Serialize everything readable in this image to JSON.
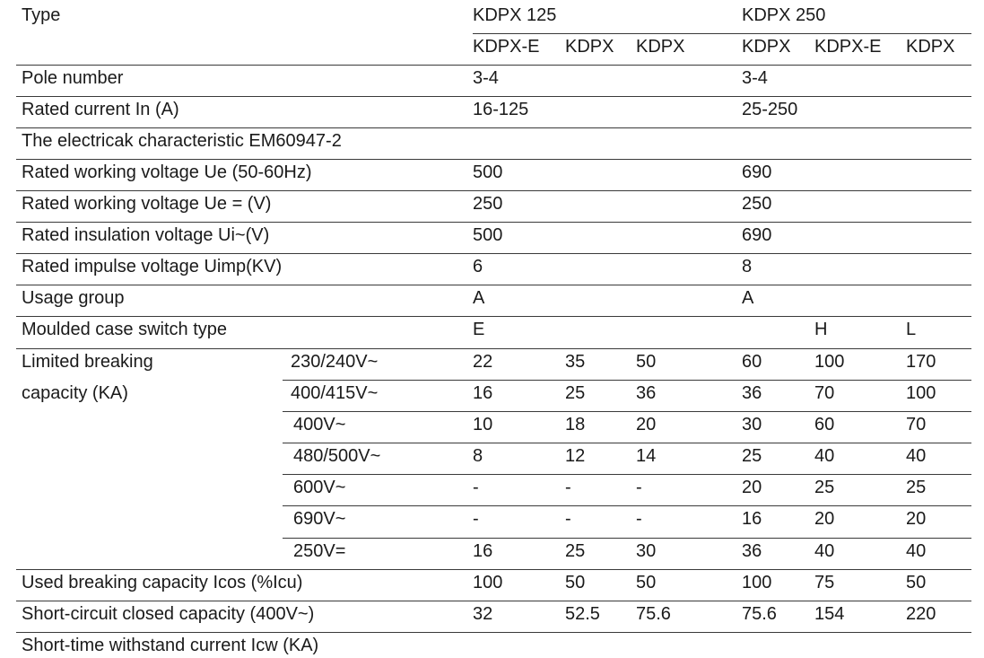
{
  "header": {
    "type_label": "Type",
    "groups": [
      "KDPX 125",
      "KDPX 250"
    ],
    "subheaders": [
      "KDPX-E",
      "KDPX",
      "KDPX",
      "KDPX",
      "KDPX-E",
      "KDPX"
    ]
  },
  "rows": [
    {
      "label": "Pole number",
      "values": [
        "3-4",
        "",
        "",
        "3-4",
        "",
        ""
      ]
    },
    {
      "label": "Rated current In (A)",
      "values": [
        "16-125",
        "",
        "",
        "25-250",
        "",
        ""
      ]
    },
    {
      "label": "The electricak characteristic EM60947-2",
      "values": [
        "",
        "",
        "",
        "",
        "",
        ""
      ]
    },
    {
      "label": "Rated working voltage Ue (50-60Hz)",
      "values": [
        "500",
        "",
        "",
        "690",
        "",
        ""
      ]
    },
    {
      "label": "Rated working voltage Ue = (V)",
      "values": [
        "250",
        "",
        "",
        "250",
        "",
        ""
      ]
    },
    {
      "label": "Rated insulation voltage Ui~(V)",
      "values": [
        "500",
        "",
        "",
        "690",
        "",
        ""
      ]
    },
    {
      "label": "Rated impulse voltage Uimp(KV)",
      "values": [
        "6",
        "",
        "",
        "8",
        "",
        ""
      ]
    },
    {
      "label": "Usage group",
      "values": [
        "A",
        "",
        "",
        "A",
        "",
        ""
      ]
    },
    {
      "label": "Moulded case switch type",
      "values": [
        "E",
        "",
        "",
        "",
        "H",
        "L"
      ]
    }
  ],
  "breaking": {
    "label_line1": "Limited breaking",
    "label_line2": "capacity (KA)",
    "rows": [
      {
        "voltage": "230/240V~",
        "values": [
          "22",
          "35",
          "50",
          "60",
          "100",
          "170"
        ]
      },
      {
        "voltage": "400/415V~",
        "values": [
          "16",
          "25",
          "36",
          "36",
          "70",
          "100"
        ]
      },
      {
        "voltage": "400V~",
        "values": [
          "10",
          "18",
          "20",
          "30",
          "60",
          "70"
        ]
      },
      {
        "voltage": "480/500V~",
        "values": [
          "8",
          "12",
          "14",
          "25",
          "40",
          "40"
        ]
      },
      {
        "voltage": "600V~",
        "values": [
          "-",
          "-",
          "-",
          "20",
          "25",
          "25"
        ]
      },
      {
        "voltage": "690V~",
        "values": [
          "-",
          "-",
          "-",
          "16",
          "20",
          "20"
        ]
      },
      {
        "voltage": "250V=",
        "values": [
          "16",
          "25",
          "30",
          "36",
          "40",
          "40"
        ]
      }
    ]
  },
  "footer_rows": [
    {
      "label": "Used breaking capacity Icos (%Icu)",
      "values": [
        "100",
        "50",
        "50",
        "100",
        "75",
        "50"
      ]
    },
    {
      "label": "Short-circuit closed capacity (400V~)",
      "values": [
        "32",
        "52.5",
        "75.6",
        "75.6",
        "154",
        "220"
      ]
    },
    {
      "label": "Short-time withstand current Icw (KA)",
      "values": [
        "",
        "",
        "",
        "",
        "",
        ""
      ]
    }
  ]
}
